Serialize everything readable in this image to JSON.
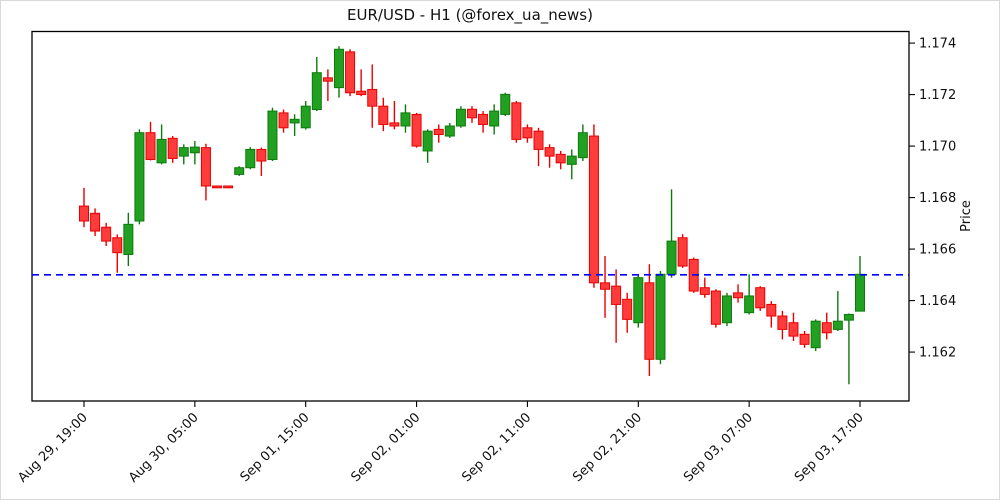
{
  "window": {
    "background": "#ffffff",
    "border_color": "#d9d9d9"
  },
  "chart_data": {
    "type": "candlestick",
    "title": "EUR/USD - H1 (@forex_ua_news)",
    "ylabel": "Price",
    "ylabel_side": "right",
    "grid": false,
    "legend_position": "none",
    "ylim": [
      1.1601,
      1.17445
    ],
    "y_ticks": [
      1.162,
      1.164,
      1.166,
      1.168,
      1.17,
      1.172,
      1.174
    ],
    "x_tick_indices": [
      0,
      10,
      20,
      30,
      40,
      50,
      60,
      70
    ],
    "x_tick_labels": [
      "Aug 29, 19:00",
      "Aug 30, 05:00",
      "Sep 01, 15:00",
      "Sep 02, 01:00",
      "Sep 02, 11:00",
      "Sep 02, 21:00",
      "Sep 03, 07:00",
      "Sep 03, 17:00"
    ],
    "hline": {
      "value": 1.165,
      "color": "#0000ff",
      "style": "dashed"
    },
    "colors": {
      "up_fill": "#22a022",
      "up_edge": "#0d7a0d",
      "down_fill": "#ff3b3b",
      "down_edge": "#e80000",
      "axis": "#000000",
      "text": "#111111"
    },
    "candles_format": [
      "open",
      "high",
      "low",
      "close"
    ],
    "candles": [
      [
        1.16767,
        1.16838,
        1.16685,
        1.16709
      ],
      [
        1.16739,
        1.16758,
        1.16651,
        1.1667
      ],
      [
        1.16685,
        1.16702,
        1.16612,
        1.16631
      ],
      [
        1.16644,
        1.16657,
        1.16508,
        1.16586
      ],
      [
        1.16579,
        1.16741,
        1.16534,
        1.16696
      ],
      [
        1.16709,
        1.17065,
        1.16696,
        1.17052
      ],
      [
        1.17052,
        1.17094,
        1.16944,
        1.16948
      ],
      [
        1.16935,
        1.17084,
        1.16929,
        1.17026
      ],
      [
        1.1703,
        1.17039,
        1.16935,
        1.16952
      ],
      [
        1.16961,
        1.17007,
        1.16929,
        1.16994
      ],
      [
        1.16974,
        1.1702,
        1.16929,
        1.16996
      ],
      [
        1.16994,
        1.17009,
        1.16789,
        1.16845
      ],
      [
        1.16845,
        1.16845,
        1.16845,
        1.16845
      ],
      [
        1.16845,
        1.16845,
        1.16845,
        1.16845
      ],
      [
        1.1689,
        1.16922,
        1.16884,
        1.16916
      ],
      [
        1.16916,
        1.16996,
        1.1691,
        1.16987
      ],
      [
        1.16987,
        1.16994,
        1.16884,
        1.16942
      ],
      [
        1.16948,
        1.17149,
        1.16942,
        1.17136
      ],
      [
        1.17129,
        1.17142,
        1.17052,
        1.17071
      ],
      [
        1.1709,
        1.17123,
        1.17039,
        1.17104
      ],
      [
        1.17071,
        1.17175,
        1.17064,
        1.17155
      ],
      [
        1.17142,
        1.17346,
        1.17136,
        1.17285
      ],
      [
        1.17265,
        1.17298,
        1.17175,
        1.17252
      ],
      [
        1.17227,
        1.17388,
        1.17188,
        1.17376
      ],
      [
        1.17366,
        1.17376,
        1.17194,
        1.17207
      ],
      [
        1.17213,
        1.17298,
        1.17194,
        1.172
      ],
      [
        1.1722,
        1.17317,
        1.17071,
        1.17155
      ],
      [
        1.17155,
        1.17188,
        1.17058,
        1.17084
      ],
      [
        1.1709,
        1.17175,
        1.17065,
        1.17078
      ],
      [
        1.17078,
        1.17162,
        1.17052,
        1.17129
      ],
      [
        1.17123,
        1.17129,
        1.16994,
        1.17
      ],
      [
        1.16981,
        1.17065,
        1.16935,
        1.17058
      ],
      [
        1.17065,
        1.17084,
        1.17013,
        1.17045
      ],
      [
        1.17039,
        1.1709,
        1.17032,
        1.17078
      ],
      [
        1.17078,
        1.17155,
        1.17071,
        1.17143
      ],
      [
        1.17143,
        1.17155,
        1.1709,
        1.1711
      ],
      [
        1.17123,
        1.17136,
        1.17052,
        1.17084
      ],
      [
        1.17078,
        1.17162,
        1.17045,
        1.17136
      ],
      [
        1.17123,
        1.17207,
        1.17117,
        1.17201
      ],
      [
        1.17168,
        1.17175,
        1.17013,
        1.17026
      ],
      [
        1.17071,
        1.17084,
        1.17013,
        1.17032
      ],
      [
        1.17058,
        1.17071,
        1.16922,
        1.16987
      ],
      [
        1.16994,
        1.17007,
        1.16916,
        1.16961
      ],
      [
        1.16968,
        1.16981,
        1.1691,
        1.16935
      ],
      [
        1.16929,
        1.16987,
        1.16871,
        1.16961
      ],
      [
        1.16955,
        1.17084,
        1.16942,
        1.17052
      ],
      [
        1.17039,
        1.17084,
        1.1645,
        1.16469
      ],
      [
        1.16469,
        1.16573,
        1.16333,
        1.16444
      ],
      [
        1.16456,
        1.16521,
        1.16236,
        1.16385
      ],
      [
        1.16405,
        1.1643,
        1.16275,
        1.16327
      ],
      [
        1.16314,
        1.16502,
        1.16295,
        1.16489
      ],
      [
        1.16469,
        1.16541,
        1.16107,
        1.16172
      ],
      [
        1.16172,
        1.16515,
        1.16153,
        1.16502
      ],
      [
        1.16502,
        1.16832,
        1.16489,
        1.16631
      ],
      [
        1.16644,
        1.16658,
        1.16527,
        1.16534
      ],
      [
        1.1656,
        1.16567,
        1.1643,
        1.16437
      ],
      [
        1.1645,
        1.16489,
        1.16411,
        1.16424
      ],
      [
        1.16437,
        1.16444,
        1.16295,
        1.16308
      ],
      [
        1.16314,
        1.1643,
        1.16301,
        1.16418
      ],
      [
        1.1643,
        1.16463,
        1.16392,
        1.16411
      ],
      [
        1.16353,
        1.16502,
        1.16346,
        1.16418
      ],
      [
        1.1645,
        1.16456,
        1.1636,
        1.16372
      ],
      [
        1.16385,
        1.16398,
        1.16295,
        1.1634
      ],
      [
        1.1634,
        1.1636,
        1.16249,
        1.16288
      ],
      [
        1.16314,
        1.16353,
        1.16243,
        1.16262
      ],
      [
        1.16269,
        1.16282,
        1.16217,
        1.1623
      ],
      [
        1.16217,
        1.16327,
        1.16204,
        1.1632
      ],
      [
        1.16314,
        1.16353,
        1.16249,
        1.16275
      ],
      [
        1.16288,
        1.16437,
        1.16282,
        1.1632
      ],
      [
        1.16324,
        1.1635,
        1.16075,
        1.16346
      ],
      [
        1.16359,
        1.16573,
        1.16359,
        1.16502
      ]
    ]
  }
}
